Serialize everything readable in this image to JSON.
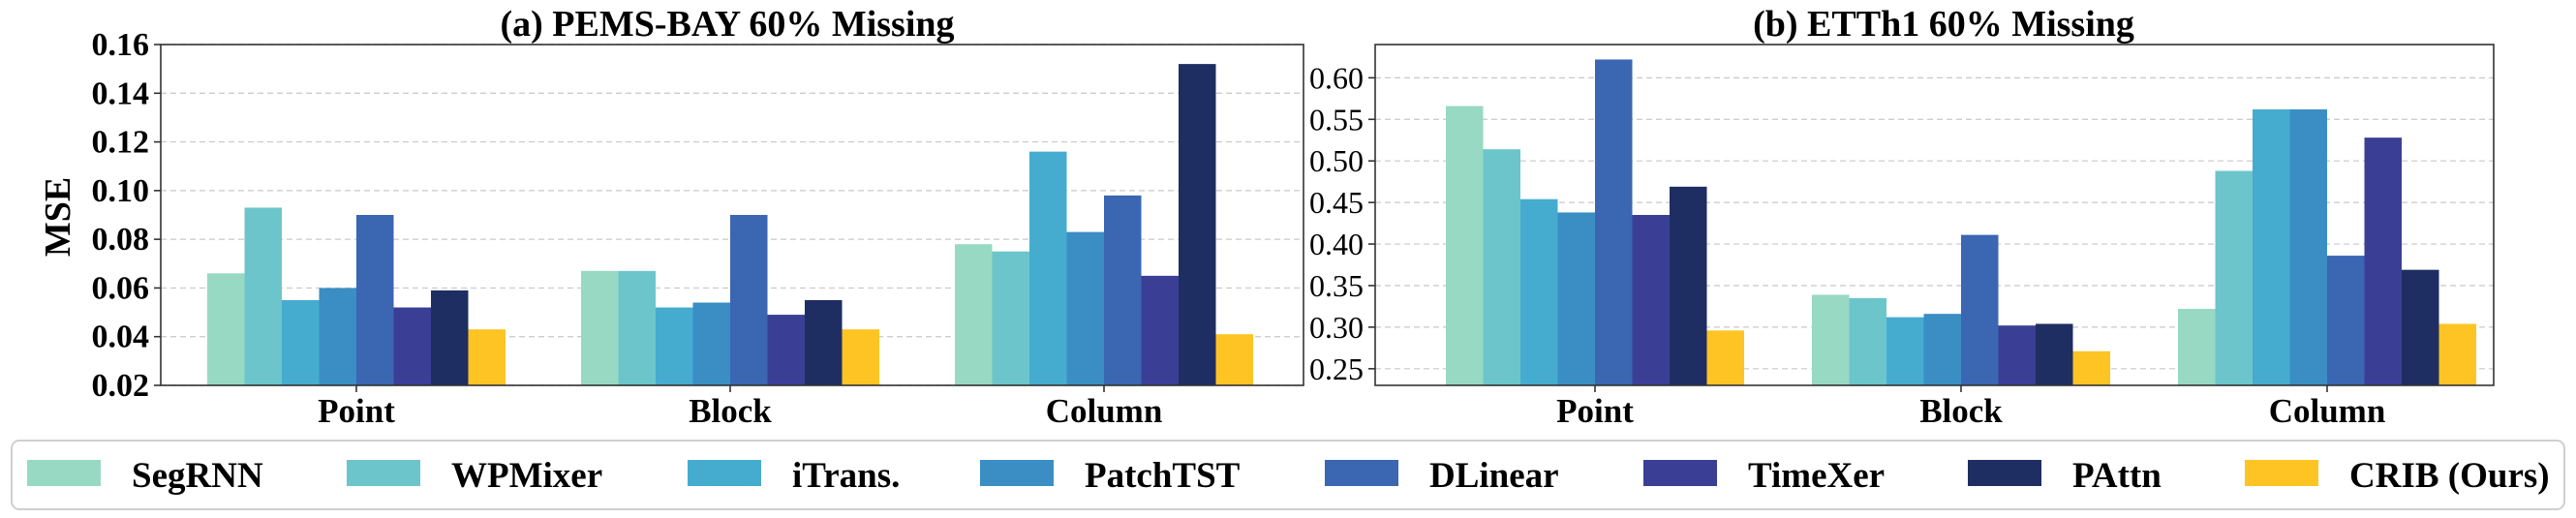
{
  "chart_data": [
    {
      "type": "bar",
      "title": "(a) PEMS-BAY 60% Missing",
      "xlabel": "",
      "ylabel": "MSE",
      "ylim": [
        0.02,
        0.16
      ],
      "yticks": [
        "0.02",
        "0.04",
        "0.06",
        "0.08",
        "0.10",
        "0.12",
        "0.14",
        "0.16"
      ],
      "categories": [
        "Point",
        "Block",
        "Column"
      ],
      "series": [
        {
          "name": "SegRNN",
          "values": [
            0.066,
            0.067,
            0.078
          ]
        },
        {
          "name": "WPMixer",
          "values": [
            0.093,
            0.067,
            0.075
          ]
        },
        {
          "name": "iTrans.",
          "values": [
            0.055,
            0.052,
            0.116
          ]
        },
        {
          "name": "PatchTST",
          "values": [
            0.06,
            0.054,
            0.083
          ]
        },
        {
          "name": "DLinear",
          "values": [
            0.09,
            0.09,
            0.098
          ]
        },
        {
          "name": "TimeXer",
          "values": [
            0.052,
            0.049,
            0.065
          ]
        },
        {
          "name": "PAttn",
          "values": [
            0.059,
            0.055,
            0.152
          ]
        },
        {
          "name": "CRIB (Ours)",
          "values": [
            0.043,
            0.043,
            0.041
          ]
        }
      ]
    },
    {
      "type": "bar",
      "title": "(b) ETTh1 60% Missing",
      "xlabel": "",
      "ylabel": "",
      "ylim": [
        0.23,
        0.64
      ],
      "yticks": [
        "0.25",
        "0.30",
        "0.35",
        "0.40",
        "0.45",
        "0.50",
        "0.55",
        "0.60"
      ],
      "categories": [
        "Point",
        "Block",
        "Column"
      ],
      "series": [
        {
          "name": "SegRNN",
          "values": [
            0.566,
            0.339,
            0.322
          ]
        },
        {
          "name": "WPMixer",
          "values": [
            0.514,
            0.335,
            0.488
          ]
        },
        {
          "name": "iTrans.",
          "values": [
            0.454,
            0.312,
            0.562
          ]
        },
        {
          "name": "PatchTST",
          "values": [
            0.438,
            0.316,
            0.562
          ]
        },
        {
          "name": "DLinear",
          "values": [
            0.622,
            0.411,
            0.386
          ]
        },
        {
          "name": "TimeXer",
          "values": [
            0.435,
            0.302,
            0.528
          ]
        },
        {
          "name": "PAttn",
          "values": [
            0.469,
            0.304,
            0.369
          ]
        },
        {
          "name": "CRIB (Ours)",
          "values": [
            0.296,
            0.271,
            0.304
          ]
        }
      ]
    }
  ],
  "legend": {
    "placement": "bottom",
    "items": [
      {
        "label": "SegRNN",
        "color": "#98d9c3"
      },
      {
        "label": "WPMixer",
        "color": "#6cc5cb"
      },
      {
        "label": "iTrans.",
        "color": "#45acd0"
      },
      {
        "label": "PatchTST",
        "color": "#3a8ec3"
      },
      {
        "label": "DLinear",
        "color": "#3b66b2"
      },
      {
        "label": "TimeXer",
        "color": "#3a3f95"
      },
      {
        "label": "PAttn",
        "color": "#1f2e62"
      },
      {
        "label": "CRIB (Ours)",
        "color": "#fdc423"
      }
    ]
  }
}
